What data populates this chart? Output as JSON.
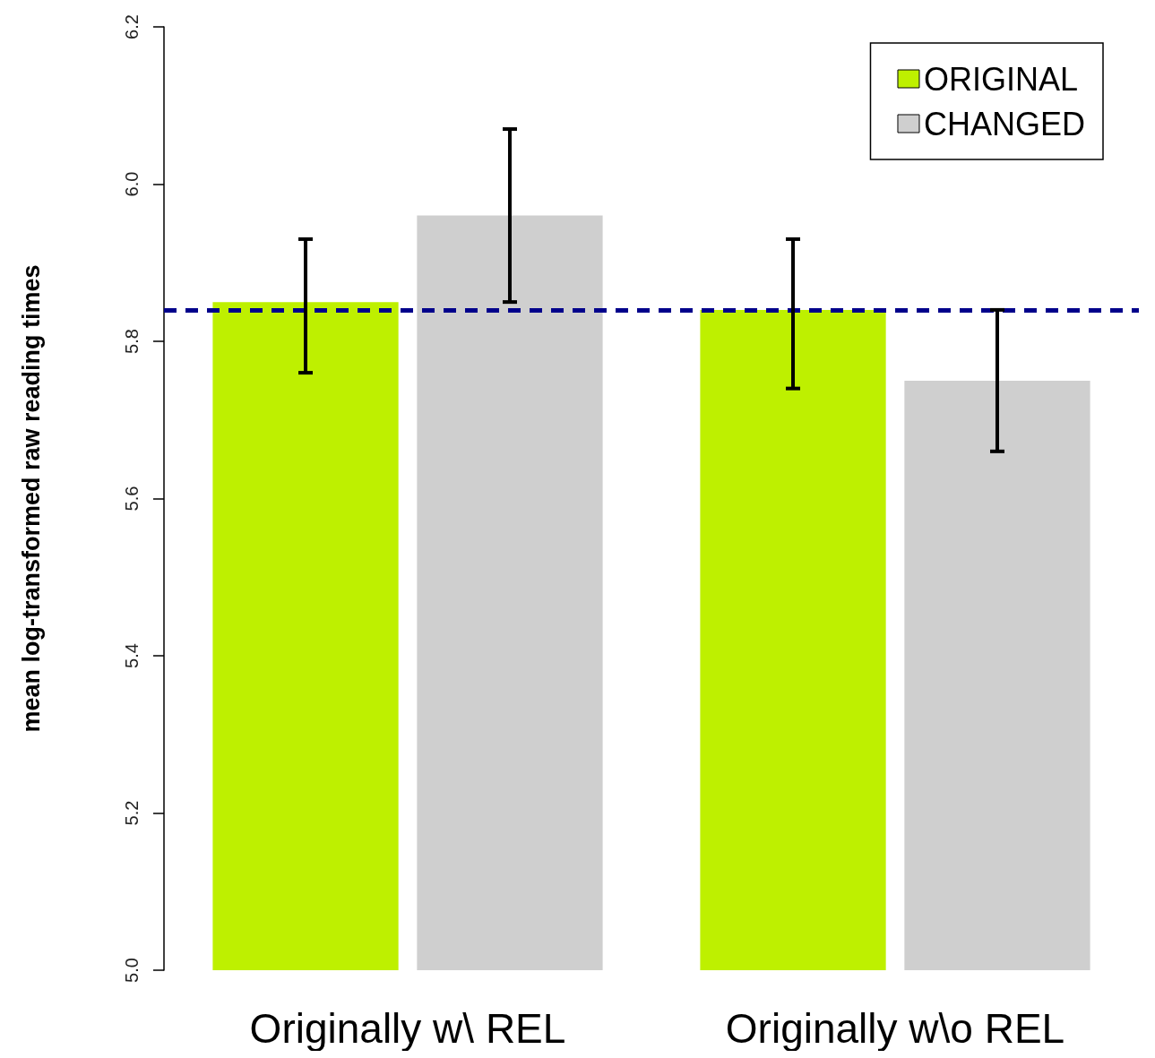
{
  "chart_data": {
    "type": "bar",
    "ylabel": "mean log-transformed raw reading times",
    "categories": [
      "Originally w\\ REL",
      "Originally w\\o REL"
    ],
    "series": [
      {
        "name": "ORIGINAL",
        "color": "#bef000",
        "values": [
          5.85,
          5.84
        ],
        "errors": [
          [
            5.76,
            5.93
          ],
          [
            5.74,
            5.93
          ]
        ]
      },
      {
        "name": "CHANGED",
        "color": "#cfcfcf",
        "values": [
          5.96,
          5.75
        ],
        "errors": [
          [
            5.85,
            6.07
          ],
          [
            5.66,
            5.84
          ]
        ]
      }
    ],
    "ylim": [
      5,
      6.2
    ],
    "yticks": [
      {
        "value": 5,
        "label": "5.0"
      },
      5.2,
      5.4,
      5.6,
      5.8,
      {
        "value": 6,
        "label": "6.0"
      },
      6.2
    ],
    "ref_lines": [
      {
        "axis": "y",
        "value": 5.84,
        "color": "#00008b",
        "line_style": "dashed"
      }
    ],
    "legend": "top right",
    "grid": false
  }
}
